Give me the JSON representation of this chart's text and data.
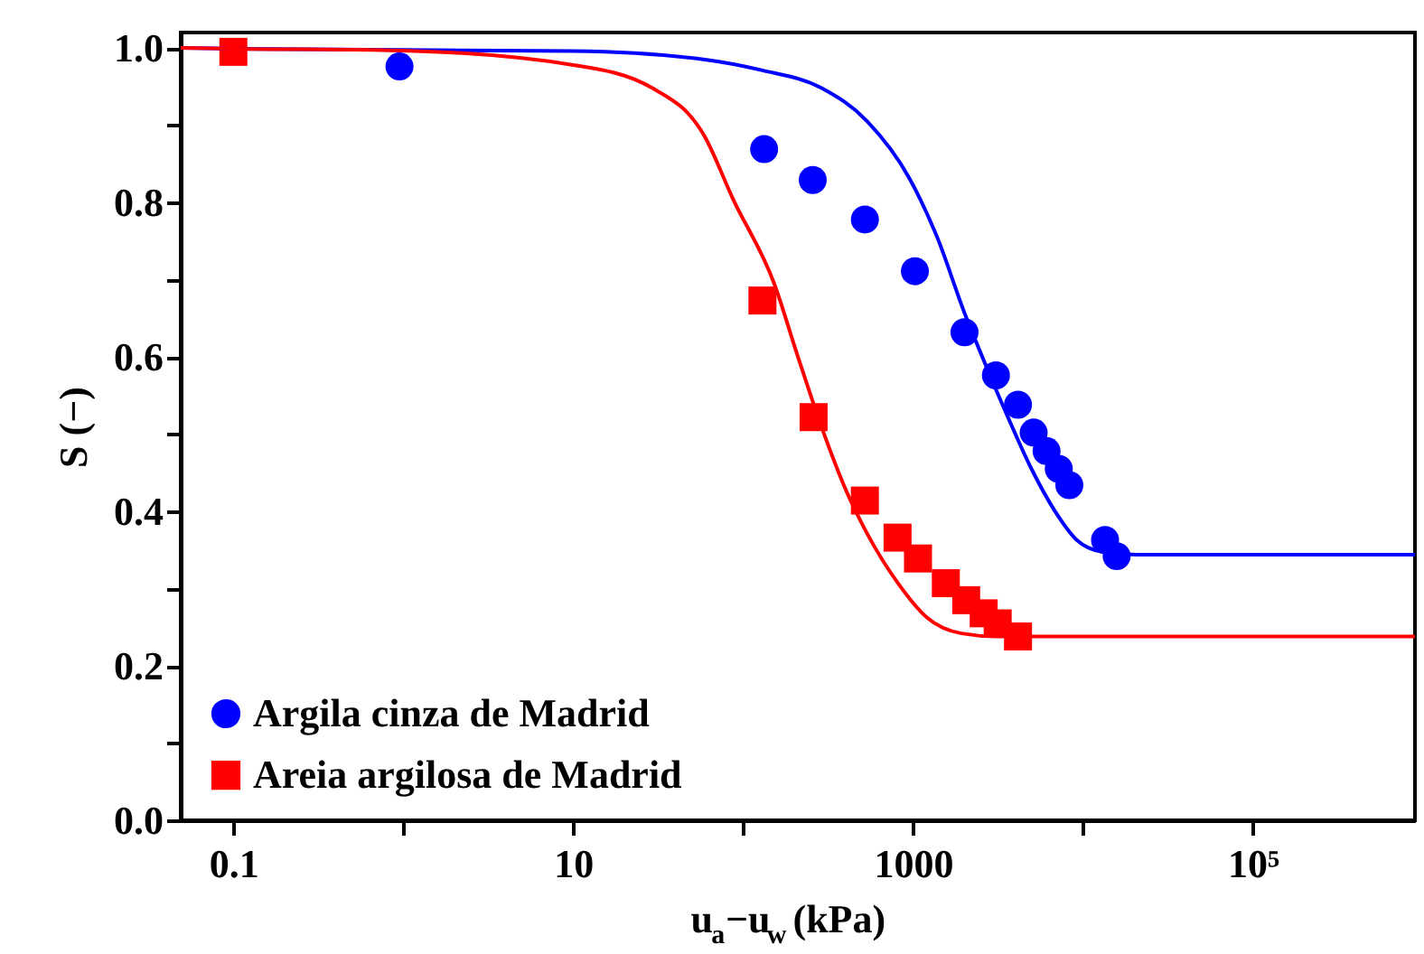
{
  "chart_data": {
    "type": "scatter",
    "xlabel": "u$_{a}$−u$_{w}$ (kPa)",
    "ylabel": "S (−)",
    "log": "x",
    "grid": false,
    "legend": "bottom left",
    "xlim": [
      0.049,
      900000
    ],
    "ylim": [
      0,
      1.02
    ],
    "xticks": [
      0.1,
      {
        "value": 1,
        "label": null
      },
      10,
      {
        "value": 100,
        "label": null
      },
      1000,
      {
        "value": 10000,
        "label": null
      },
      {
        "value": 100000,
        "label": "10⁵"
      }
    ],
    "yticks": [
      {
        "value": 0,
        "label": "0.0"
      },
      {
        "value": 0.1,
        "label": null
      },
      0.2,
      {
        "value": 0.3,
        "label": null
      },
      0.4,
      {
        "value": 0.5,
        "label": null
      },
      0.6,
      {
        "value": 0.7,
        "label": null
      },
      0.8,
      {
        "value": 0.9,
        "label": null
      },
      {
        "value": 1,
        "label": "1.0"
      }
    ],
    "series": [
      {
        "name": "Argila cinza de Madrid",
        "color": "#0000ff",
        "marker": "circle",
        "x": [
          0.95,
          133,
          257,
          521,
          1026,
          2010,
          3076,
          4150,
          5130,
          6110,
          7210,
          8320,
          13500,
          15800
        ],
        "values": [
          0.976,
          0.869,
          0.829,
          0.778,
          0.711,
          0.632,
          0.576,
          0.538,
          0.502,
          0.478,
          0.455,
          0.434,
          0.363,
          0.342
        ]
      },
      {
        "name": "Areia argilosa de Madrid",
        "color": "#ff0000",
        "marker": "square",
        "x": [
          0.1,
          130,
          260,
          521,
          811,
          1070,
          1560,
          2056,
          2606,
          3150,
          4150
        ],
        "values": [
          0.995,
          0.673,
          0.522,
          0.414,
          0.366,
          0.339,
          0.307,
          0.285,
          0.268,
          0.255,
          0.238
        ]
      },
      {
        "type": "line",
        "color": "#0000ff",
        "marker": "none",
        "x": [
          0.049,
          0.1,
          10,
          59.6,
          130,
          290,
          538,
          948,
          1387,
          2025,
          2626,
          3570,
          4980,
          6770,
          9200,
          12800,
          20600,
          900000
        ],
        "values": [
          1.0,
          0.999,
          0.996,
          0.985,
          0.971,
          0.948,
          0.905,
          0.832,
          0.755,
          0.655,
          0.594,
          0.525,
          0.455,
          0.402,
          0.363,
          0.348,
          0.344,
          0.344
        ]
      },
      {
        "type": "line",
        "color": "#ff0000",
        "marker": "none",
        "x": [
          0.049,
          0.1,
          0.84,
          10,
          29.3,
          59.6,
          87,
          153,
          209,
          290,
          395,
          538,
          804,
          1202,
          1930,
          3100,
          900000
        ],
        "values": [
          1.0,
          0.999,
          0.997,
          0.978,
          0.948,
          0.885,
          0.805,
          0.694,
          0.602,
          0.509,
          0.432,
          0.371,
          0.309,
          0.263,
          0.242,
          0.238,
          0.238
        ]
      }
    ]
  }
}
